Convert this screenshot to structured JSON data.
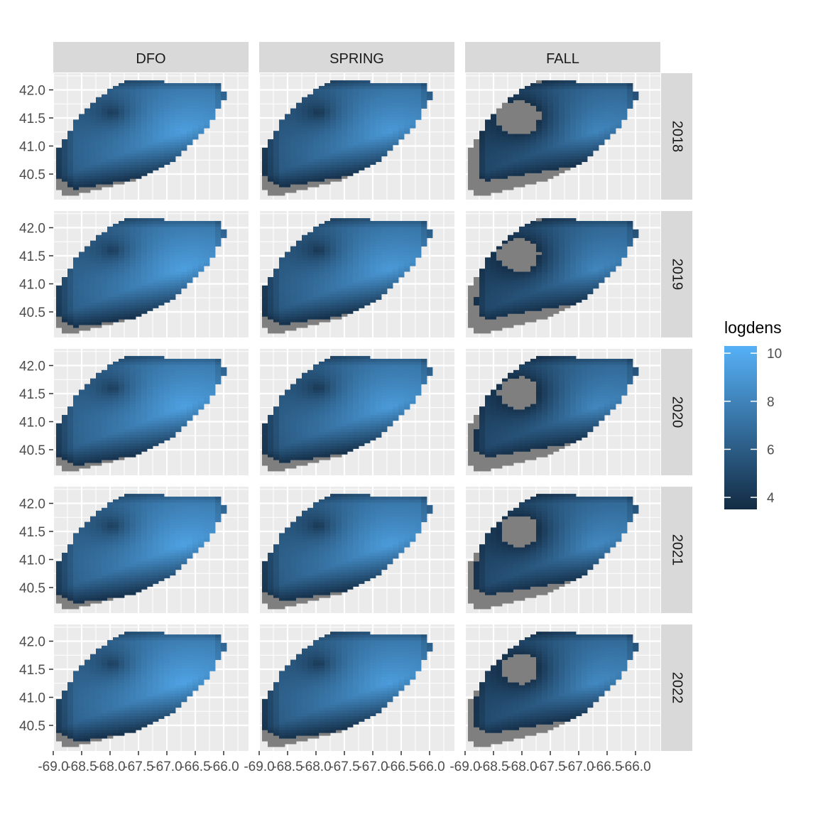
{
  "chart_data": {
    "type": "heatmap",
    "facet_columns": [
      "DFO",
      "SPRING",
      "FALL"
    ],
    "facet_rows": [
      "2018",
      "2019",
      "2020",
      "2021",
      "2022"
    ],
    "x_ticks": [
      -69.0,
      -68.5,
      -68.0,
      -67.5,
      -67.0,
      -66.5,
      -66.0
    ],
    "x_tick_labels": [
      "-69.0",
      "-68.5",
      "-68.0",
      "-67.5",
      "-67.0",
      "-66.5",
      "-66.0"
    ],
    "y_ticks": [
      40.5,
      41.0,
      41.5,
      42.0
    ],
    "y_tick_labels": [
      "40.5",
      "41.0",
      "41.5",
      "42.0"
    ],
    "xlim": [
      -69.0,
      -65.6
    ],
    "ylim": [
      40.1,
      42.3
    ],
    "grid": true,
    "legend": {
      "title": "logdens",
      "position": "right",
      "range": [
        3.5,
        10.3
      ],
      "ticks": [
        4,
        6,
        8,
        10
      ],
      "tick_labels": [
        "4",
        "6",
        "8",
        "10"
      ],
      "low_color": "#132B43",
      "high_color": "#56B1F7",
      "na_color": "#7F7F7F"
    },
    "colors": {
      "panel_background": "#EBEBEB",
      "strip_background": "#D9D9D9",
      "grid": "#FFFFFF"
    }
  }
}
